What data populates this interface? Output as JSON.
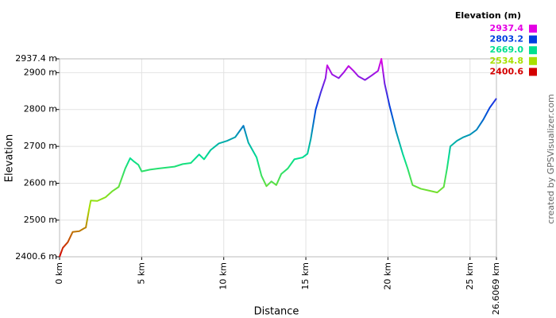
{
  "chart_data": {
    "type": "line",
    "legend_title": "Elevation (m)",
    "x_label": "Distance",
    "y_label": "Elevation",
    "credit": "created by GPSVisualizer.com",
    "grid": true,
    "color_scale": [
      {
        "value": 2937.4,
        "color": "#e400e4"
      },
      {
        "value": 2803.2,
        "color": "#0040e0"
      },
      {
        "value": 2669,
        "label": "2669.0",
        "color": "#00e090"
      },
      {
        "value": 2534.8,
        "color": "#a8e000"
      },
      {
        "value": 2400.6,
        "color": "#d40000"
      }
    ],
    "x": [
      0,
      0.2,
      0.5,
      0.8,
      1.2,
      1.5,
      1.6,
      1.8,
      1.9,
      2.3,
      2.8,
      3.2,
      3.6,
      4.0,
      4.3,
      4.5,
      4.8,
      5.0,
      5.5,
      6.0,
      7.0,
      7.5,
      8.0,
      8.5,
      8.8,
      9.2,
      9.7,
      10.2,
      10.7,
      11.2,
      11.5,
      12.0,
      12.3,
      12.6,
      12.9,
      13.2,
      13.5,
      13.9,
      14.3,
      14.8,
      15.1,
      15.3,
      15.6,
      15.9,
      16.2,
      16.3,
      16.6,
      17.0,
      17.3,
      17.6,
      17.9,
      18.2,
      18.6,
      19.0,
      19.4,
      19.6,
      19.8,
      20.1,
      20.5,
      20.9,
      21.2,
      21.5,
      22.0,
      22.5,
      23.0,
      23.4,
      23.6,
      23.8,
      24.2,
      24.6,
      25.0,
      25.4,
      25.8,
      26.2,
      26.6069
    ],
    "values": [
      2400.6,
      2425,
      2440,
      2468,
      2470,
      2478,
      2480,
      2530,
      2553,
      2552,
      2562,
      2578,
      2590,
      2640,
      2668,
      2660,
      2650,
      2632,
      2637,
      2640,
      2645,
      2652,
      2655,
      2678,
      2665,
      2690,
      2708,
      2715,
      2725,
      2756,
      2710,
      2670,
      2620,
      2592,
      2605,
      2595,
      2625,
      2640,
      2665,
      2670,
      2680,
      2720,
      2800,
      2845,
      2885,
      2920,
      2895,
      2885,
      2900,
      2918,
      2905,
      2890,
      2880,
      2892,
      2905,
      2937.4,
      2870,
      2810,
      2740,
      2680,
      2640,
      2595,
      2585,
      2580,
      2575,
      2590,
      2640,
      2700,
      2715,
      2725,
      2732,
      2745,
      2772,
      2805,
      2830
    ],
    "xlim": [
      0,
      26.6069
    ],
    "xticks": [
      {
        "value": 0,
        "label": "0 km"
      },
      {
        "value": 5,
        "label": "5 km"
      },
      {
        "value": 10,
        "label": "10 km"
      },
      {
        "value": 15,
        "label": "15 km"
      },
      {
        "value": 20,
        "label": "20 km"
      },
      {
        "value": 25,
        "label": "25 km"
      },
      {
        "value": 26.6069,
        "label": "26.6069 km"
      }
    ],
    "ylim": [
      2400.6,
      2937.4
    ],
    "yticks": [
      {
        "value": 2400.6,
        "label": "2400.6 m"
      },
      {
        "value": 2500,
        "label": "2500 m"
      },
      {
        "value": 2600,
        "label": "2600 m"
      },
      {
        "value": 2700,
        "label": "2700 m"
      },
      {
        "value": 2800,
        "label": "2800 m"
      },
      {
        "value": 2900,
        "label": "2900 m"
      },
      {
        "value": 2937.4,
        "label": "2937.4 m"
      }
    ]
  }
}
